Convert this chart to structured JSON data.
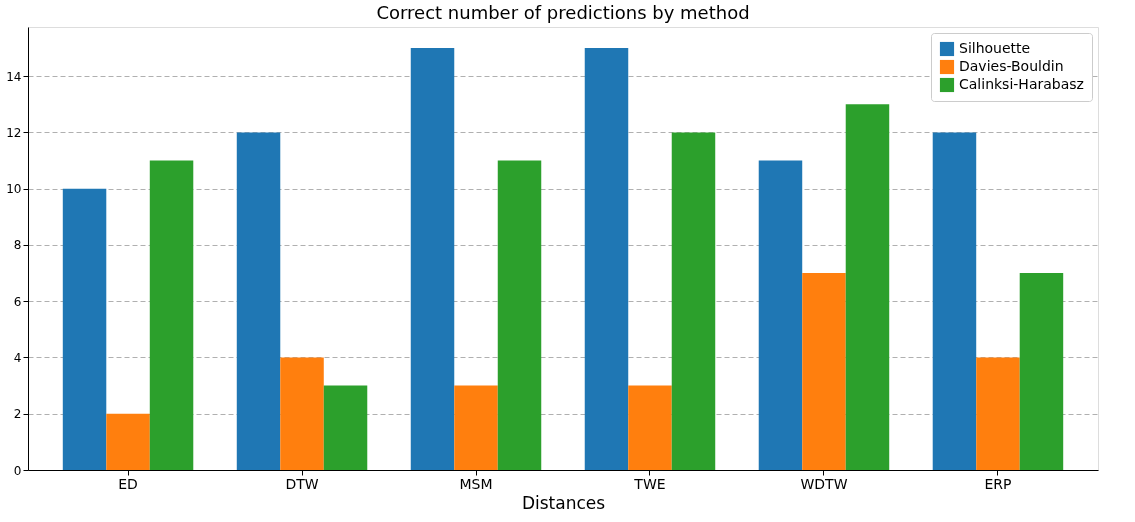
{
  "chart_data": {
    "type": "bar",
    "title": "Correct number of predictions by method",
    "xlabel": "Distances",
    "categories": [
      "ED",
      "DTW",
      "MSM",
      "TWE",
      "WDTW",
      "ERP"
    ],
    "series": [
      {
        "name": "Silhouette",
        "color": "#1f77b4",
        "values": [
          10,
          12,
          15,
          15,
          11,
          12
        ]
      },
      {
        "name": "Davies-Bouldin",
        "color": "#ff7f0e",
        "values": [
          2,
          4,
          3,
          3,
          7,
          4
        ]
      },
      {
        "name": "Calinksi-Harabasz",
        "color": "#2ca02c",
        "values": [
          11,
          3,
          11,
          12,
          13,
          7
        ]
      }
    ],
    "ylim": [
      0,
      15.75
    ],
    "yticks": [
      0,
      2,
      4,
      6,
      8,
      10,
      12,
      14
    ],
    "grid": "y",
    "legend": "top right"
  }
}
